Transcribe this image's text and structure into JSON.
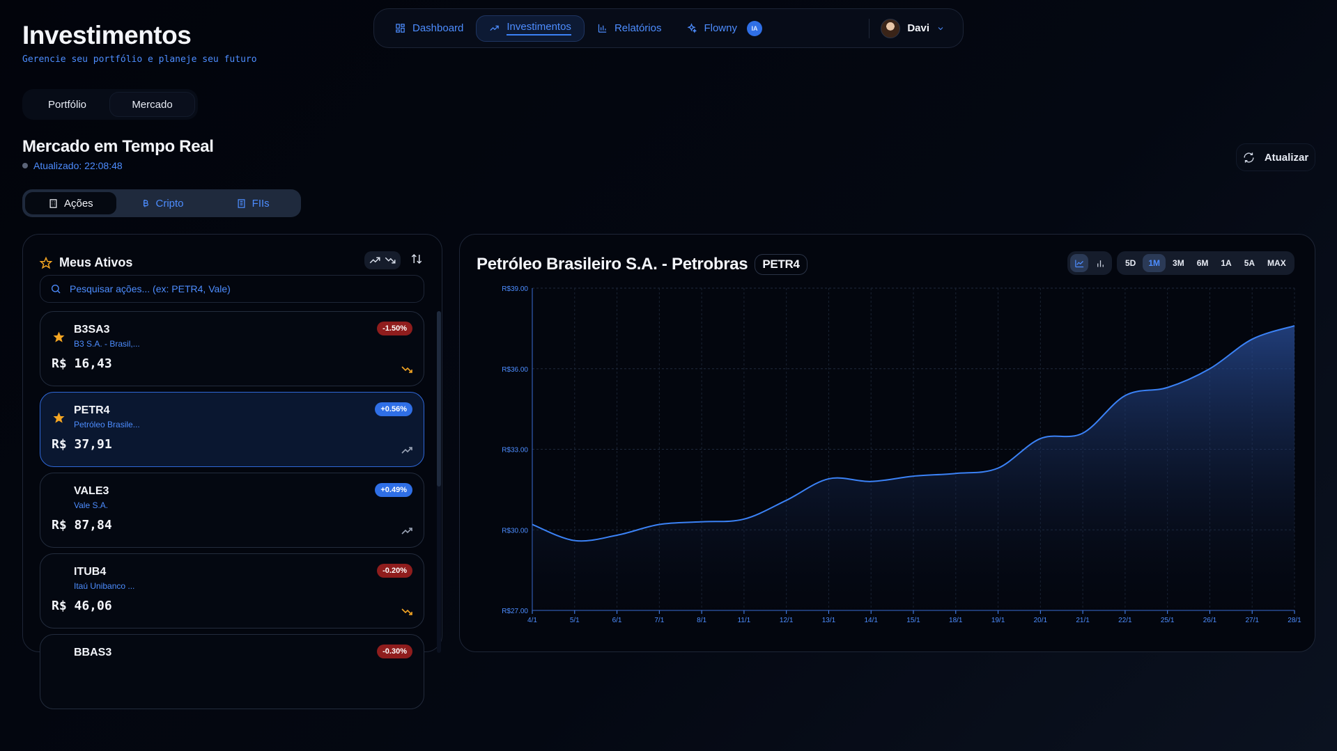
{
  "header": {
    "title": "Investimentos",
    "subtitle": "Gerencie seu portfólio e planeje seu futuro"
  },
  "nav": {
    "items": [
      {
        "label": "Dashboard",
        "icon": "grid-icon"
      },
      {
        "label": "Investimentos",
        "icon": "trending-up-icon"
      },
      {
        "label": "Relatórios",
        "icon": "bar-chart-icon"
      },
      {
        "label": "Flowny",
        "icon": "sparkles-icon",
        "badge": "IA"
      }
    ],
    "user": "Davi"
  },
  "view_tabs": [
    "Portfólio",
    "Mercado"
  ],
  "section": {
    "title": "Mercado em Tempo Real",
    "updated": "Atualizado: 22:08:48",
    "refresh_label": "Atualizar"
  },
  "asset_tabs": [
    "Ações",
    "Cripto",
    "FIIs"
  ],
  "assets_panel": {
    "title": "Meus Ativos",
    "search_placeholder": "Pesquisar ações... (ex: PETR4, Vale)",
    "items": [
      {
        "ticker": "B3SA3",
        "name": "B3 S.A. - Brasil,...",
        "price": "R$ 16,43",
        "change": "-1.50%",
        "favorite": true
      },
      {
        "ticker": "PETR4",
        "name": "Petróleo Brasile...",
        "price": "R$ 37,91",
        "change": "+0.56%",
        "favorite": true
      },
      {
        "ticker": "VALE3",
        "name": "Vale S.A.",
        "price": "R$ 87,84",
        "change": "+0.49%",
        "favorite": false
      },
      {
        "ticker": "ITUB4",
        "name": "Itaú Unibanco ...",
        "price": "R$ 46,06",
        "change": "-0.20%",
        "favorite": false
      },
      {
        "ticker": "BBAS3",
        "name": "",
        "price": "",
        "change": "-0.30%",
        "favorite": false
      }
    ]
  },
  "chart_panel": {
    "title": "Petróleo Brasileiro S.A. - Petrobras",
    "ticker": "PETR4",
    "ranges": [
      "5D",
      "1M",
      "3M",
      "6M",
      "1A",
      "5A",
      "MAX"
    ],
    "active_range": "1M"
  },
  "colors": {
    "accent": "#3b82f6",
    "negative": "#8f1d1d",
    "star": "#f5a623"
  },
  "chart_data": {
    "type": "area",
    "x": [
      "4/1",
      "5/1",
      "6/1",
      "7/1",
      "8/1",
      "11/1",
      "12/1",
      "13/1",
      "14/1",
      "15/1",
      "18/1",
      "19/1",
      "20/1",
      "21/1",
      "22/1",
      "25/1",
      "26/1",
      "27/1",
      "28/1"
    ],
    "y": [
      30.2,
      29.6,
      29.8,
      30.2,
      30.3,
      30.4,
      31.1,
      31.9,
      31.8,
      32.0,
      32.1,
      32.3,
      33.4,
      33.6,
      35.0,
      35.3,
      36.0,
      37.1,
      37.6
    ],
    "ylim": [
      27,
      39
    ],
    "yticks": [
      "R$27.00",
      "R$30.00",
      "R$33.00",
      "R$36.00",
      "R$39.00"
    ],
    "ytick_values": [
      27,
      30,
      33,
      36,
      39
    ],
    "grid": true
  }
}
